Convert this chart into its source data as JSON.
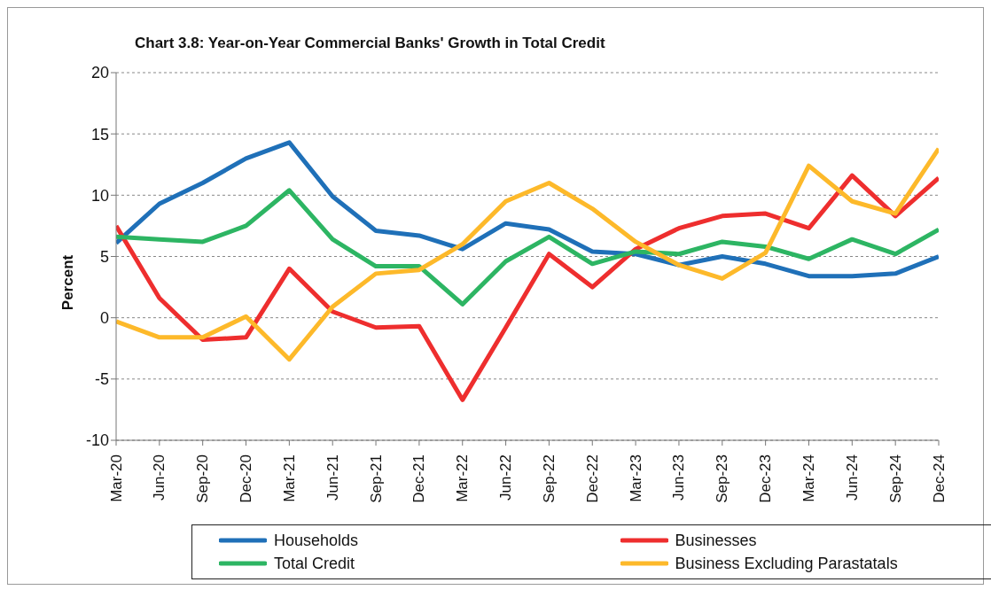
{
  "chart_data": {
    "type": "line",
    "title": "Chart 3.8: Year-on-Year Commercial Banks' Growth in Total Credit",
    "ylabel": "Percent",
    "categories": [
      "Mar-20",
      "Jun-20",
      "Sep-20",
      "Dec-20",
      "Mar-21",
      "Jun-21",
      "Sep-21",
      "Dec-21",
      "Mar-22",
      "Jun-22",
      "Sep-22",
      "Dec-22",
      "Mar-23",
      "Jun-23",
      "Sep-23",
      "Dec-23",
      "Mar-24",
      "Jun-24",
      "Sep-24",
      "Dec-24"
    ],
    "series": [
      {
        "name": "Households",
        "color": "#1f70b8",
        "values": [
          6.1,
          9.3,
          11.0,
          13.0,
          14.3,
          9.9,
          7.1,
          6.7,
          5.6,
          7.7,
          7.2,
          5.4,
          5.2,
          4.3,
          5.0,
          4.4,
          3.4,
          3.4,
          3.6,
          5.0
        ]
      },
      {
        "name": "Businesses",
        "color": "#ee2e2e",
        "values": [
          7.5,
          1.6,
          -1.8,
          -1.6,
          4.0,
          0.5,
          -0.8,
          -0.7,
          -6.7,
          -0.8,
          5.2,
          2.5,
          5.6,
          7.3,
          8.3,
          8.5,
          7.3,
          11.6,
          8.3,
          11.4
        ]
      },
      {
        "name": "Total Credit",
        "color": "#2db563",
        "values": [
          6.6,
          6.4,
          6.2,
          7.5,
          10.4,
          6.4,
          4.2,
          4.2,
          1.1,
          4.6,
          6.6,
          4.4,
          5.4,
          5.2,
          6.2,
          5.8,
          4.8,
          6.4,
          5.2,
          7.2
        ]
      },
      {
        "name": "Business Excluding Parastatals",
        "color": "#fdb92a",
        "values": [
          -0.3,
          -1.6,
          -1.6,
          0.1,
          -3.4,
          0.9,
          3.6,
          3.9,
          6.0,
          9.5,
          11.0,
          8.9,
          6.2,
          4.3,
          3.2,
          5.3,
          12.4,
          9.5,
          8.5,
          13.8
        ]
      }
    ],
    "ylim": [
      -10,
      20
    ],
    "yticks": [
      -10,
      -5,
      0,
      5,
      10,
      15,
      20
    ],
    "grid": "y",
    "legend": "bottom",
    "marker": "none",
    "line_style": "solid"
  }
}
